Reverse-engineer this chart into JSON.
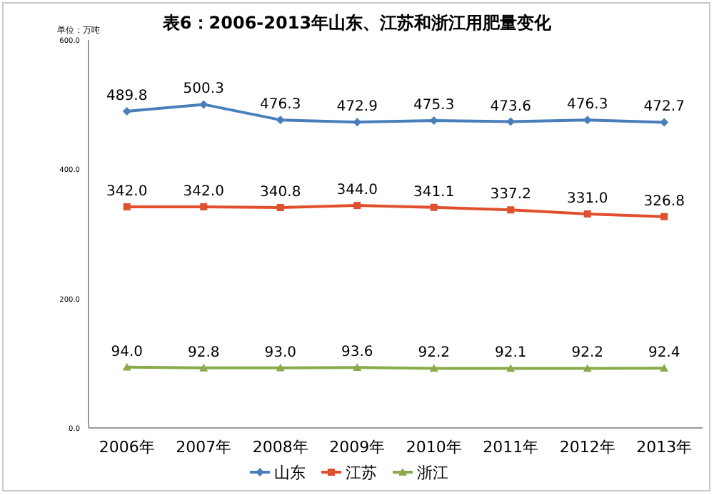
{
  "chart_data": {
    "type": "line",
    "title": "表6：2006-2013年山东、江苏和浙江用肥量变化",
    "ylabel": "单位：万吨",
    "categories": [
      "2006年",
      "2007年",
      "2008年",
      "2009年",
      "2010年",
      "2011年",
      "2012年",
      "2013年"
    ],
    "ylim": [
      0,
      600
    ],
    "yticks": [
      {
        "value": 0,
        "label": "0.0"
      },
      {
        "value": 200,
        "label": "200.0"
      },
      {
        "value": 400,
        "label": "400.0"
      },
      {
        "value": 600,
        "label": "600.0"
      }
    ],
    "series": [
      {
        "name": "山东",
        "color": "#4a7ebb",
        "marker": "diamond",
        "values": [
          489.8,
          500.3,
          476.3,
          472.9,
          475.3,
          473.6,
          476.3,
          472.7
        ],
        "value_labels": [
          "489.8",
          "500.3",
          "476.3",
          "472.9",
          "475.3",
          "473.6",
          "476.3",
          "472.7"
        ]
      },
      {
        "name": "江苏",
        "color": "#e0502e",
        "marker": "square",
        "values": [
          342.0,
          342.0,
          340.8,
          344.0,
          341.1,
          337.2,
          331.0,
          326.8
        ],
        "value_labels": [
          "342.0",
          "342.0",
          "340.8",
          "344.0",
          "341.1",
          "337.2",
          "331.0",
          "326.8"
        ]
      },
      {
        "name": "浙江",
        "color": "#8aaa4b",
        "marker": "triangle",
        "values": [
          94.0,
          92.8,
          93.0,
          93.6,
          92.2,
          92.1,
          92.2,
          92.4
        ],
        "value_labels": [
          "94.0",
          "92.8",
          "93.0",
          "93.6",
          "92.2",
          "92.1",
          "92.2",
          "92.4"
        ]
      }
    ],
    "grid": false,
    "legend": "bottom"
  }
}
